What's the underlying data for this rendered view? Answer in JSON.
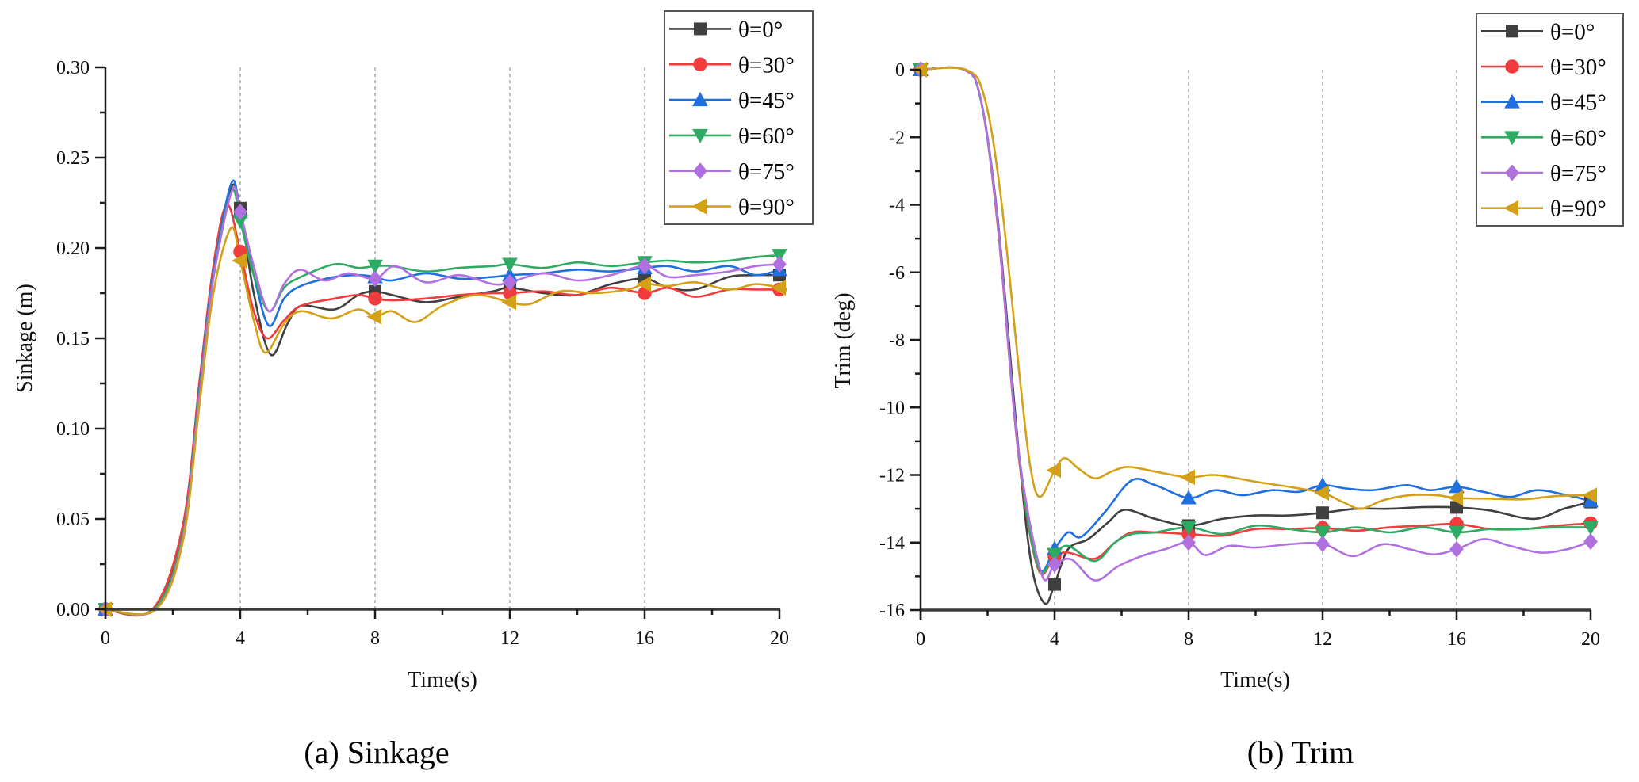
{
  "chart_data": [
    {
      "type": "line",
      "id": "sinkage",
      "caption": "(a) Sinkage",
      "title": "",
      "xlabel": "Time(s)",
      "ylabel": "Sinkage (m)",
      "xlim": [
        0,
        20
      ],
      "ylim": [
        0,
        0.3
      ],
      "xticks": [
        0,
        4,
        8,
        12,
        16,
        20
      ],
      "xtick_labels": [
        "0",
        "4",
        "8",
        "12",
        "16",
        "20"
      ],
      "yticks": [
        0,
        0.05,
        0.1,
        0.15,
        0.2,
        0.25,
        0.3
      ],
      "ytick_labels": [
        "0.00",
        "0.05",
        "0.10",
        "0.15",
        "0.20",
        "0.25",
        "0.30"
      ],
      "grid": "vertical dashed at x ticks",
      "legend_position": "top-right",
      "marker_x": [
        0,
        4,
        8,
        12,
        16,
        20
      ],
      "series": [
        {
          "name": "θ=0°",
          "color": "#404040",
          "marker": "square",
          "x": [
            0,
            1.4,
            2.3,
            2.8,
            3.2,
            3.72,
            4.0,
            4.4,
            4.9,
            5.4,
            5.8,
            6.8,
            7.5,
            8.0,
            8.5,
            9.5,
            10.5,
            11.5,
            12.0,
            13.0,
            14.0,
            15.0,
            16.0,
            16.7,
            17.5,
            18.5,
            19.3,
            20.0
          ],
          "y": [
            0,
            0,
            0.045,
            0.125,
            0.185,
            0.233,
            0.222,
            0.175,
            0.141,
            0.158,
            0.168,
            0.166,
            0.174,
            0.176,
            0.174,
            0.17,
            0.173,
            0.176,
            0.178,
            0.175,
            0.174,
            0.18,
            0.183,
            0.178,
            0.177,
            0.184,
            0.185,
            0.185
          ]
        },
        {
          "name": "θ=30°",
          "color": "#f03c3c",
          "marker": "circle",
          "x": [
            0,
            1.4,
            2.3,
            2.8,
            3.2,
            3.6,
            4.0,
            4.4,
            4.8,
            5.3,
            5.8,
            6.8,
            7.5,
            8.0,
            8.5,
            9.5,
            10.5,
            11.5,
            12.0,
            13.0,
            14.0,
            15.0,
            16.0,
            16.7,
            17.5,
            18.5,
            19.3,
            20.0
          ],
          "y": [
            0,
            0,
            0.047,
            0.128,
            0.19,
            0.224,
            0.198,
            0.165,
            0.15,
            0.16,
            0.168,
            0.172,
            0.174,
            0.172,
            0.171,
            0.172,
            0.174,
            0.175,
            0.175,
            0.176,
            0.174,
            0.178,
            0.175,
            0.178,
            0.173,
            0.177,
            0.177,
            0.177
          ]
        },
        {
          "name": "θ=45°",
          "color": "#1f6fe0",
          "marker": "triangle-up",
          "x": [
            0,
            1.45,
            2.3,
            2.8,
            3.2,
            3.74,
            4.0,
            4.4,
            4.85,
            5.3,
            5.8,
            6.8,
            7.5,
            8.0,
            8.5,
            9.5,
            10.5,
            11.5,
            12.0,
            13.0,
            14.0,
            15.0,
            16.0,
            16.7,
            17.5,
            18.5,
            19.3,
            20.0
          ],
          "y": [
            0,
            0,
            0.042,
            0.124,
            0.186,
            0.236,
            0.22,
            0.185,
            0.157,
            0.172,
            0.179,
            0.184,
            0.185,
            0.184,
            0.182,
            0.186,
            0.183,
            0.184,
            0.185,
            0.186,
            0.188,
            0.187,
            0.189,
            0.19,
            0.187,
            0.19,
            0.185,
            0.188
          ]
        },
        {
          "name": "θ=60°",
          "color": "#2eaa62",
          "marker": "triangle-down",
          "x": [
            0,
            1.45,
            2.3,
            2.8,
            3.2,
            3.74,
            4.0,
            4.4,
            4.85,
            5.3,
            5.8,
            6.8,
            7.5,
            8.0,
            8.5,
            9.5,
            10.5,
            11.5,
            12.0,
            13.0,
            14.0,
            15.0,
            16.0,
            16.7,
            17.5,
            18.5,
            19.3,
            20.0
          ],
          "y": [
            0,
            0,
            0.042,
            0.122,
            0.184,
            0.231,
            0.215,
            0.185,
            0.165,
            0.178,
            0.184,
            0.191,
            0.189,
            0.19,
            0.19,
            0.187,
            0.189,
            0.19,
            0.191,
            0.189,
            0.192,
            0.19,
            0.192,
            0.193,
            0.192,
            0.193,
            0.195,
            0.196
          ]
        },
        {
          "name": "θ=75°",
          "color": "#b070e0",
          "marker": "diamond",
          "x": [
            0,
            1.5,
            2.3,
            2.8,
            3.2,
            3.76,
            4.0,
            4.4,
            4.85,
            5.3,
            5.77,
            6.5,
            7.2,
            8.0,
            8.6,
            9.5,
            10.5,
            11.5,
            12.0,
            13.0,
            14.0,
            15.0,
            16.0,
            16.7,
            17.5,
            18.5,
            19.3,
            20.0
          ],
          "y": [
            0,
            0,
            0.04,
            0.12,
            0.183,
            0.232,
            0.22,
            0.19,
            0.165,
            0.18,
            0.188,
            0.182,
            0.186,
            0.183,
            0.19,
            0.181,
            0.185,
            0.18,
            0.181,
            0.186,
            0.182,
            0.185,
            0.19,
            0.184,
            0.185,
            0.187,
            0.19,
            0.191
          ]
        },
        {
          "name": "θ=90°",
          "color": "#d4a017",
          "marker": "triangle-left",
          "x": [
            0,
            1.5,
            2.3,
            2.8,
            3.2,
            3.72,
            4.0,
            4.4,
            4.75,
            5.3,
            5.8,
            6.7,
            7.5,
            8.0,
            8.5,
            9.2,
            10.0,
            11.0,
            12.0,
            12.6,
            13.5,
            14.5,
            15.5,
            16.0,
            16.7,
            17.5,
            18.5,
            19.3,
            20.0
          ],
          "y": [
            0,
            0,
            0.038,
            0.115,
            0.175,
            0.211,
            0.193,
            0.16,
            0.142,
            0.158,
            0.165,
            0.161,
            0.166,
            0.162,
            0.165,
            0.159,
            0.168,
            0.174,
            0.17,
            0.169,
            0.176,
            0.175,
            0.177,
            0.18,
            0.179,
            0.181,
            0.177,
            0.18,
            0.178
          ]
        }
      ]
    },
    {
      "type": "line",
      "id": "trim",
      "caption": "(b) Trim",
      "title": "",
      "xlabel": "Time(s)",
      "ylabel": "Trim (deg)",
      "xlim": [
        0,
        20
      ],
      "ylim": [
        -16,
        0
      ],
      "xticks": [
        0,
        4,
        8,
        12,
        16,
        20
      ],
      "xtick_labels": [
        "0",
        "4",
        "8",
        "12",
        "16",
        "20"
      ],
      "yticks": [
        0,
        -2,
        -4,
        -6,
        -8,
        -10,
        -12,
        -14,
        -16
      ],
      "ytick_labels": [
        "0",
        "-2",
        "-4",
        "-6",
        "-8",
        "-10",
        "-12",
        "-14",
        "-16"
      ],
      "grid": "vertical dashed at x ticks",
      "legend_position": "top-right",
      "marker_x": [
        0,
        4,
        8,
        12,
        16,
        20
      ],
      "series": [
        {
          "name": "θ=0°",
          "color": "#404040",
          "marker": "square",
          "x": [
            0,
            1.3,
            1.8,
            2.3,
            2.9,
            3.3,
            3.7,
            4.0,
            4.4,
            5.0,
            5.6,
            6.1,
            7.0,
            8.0,
            9.0,
            10.0,
            11.0,
            12.0,
            13.0,
            14.0,
            15.0,
            16.0,
            17.0,
            18.3,
            19.2,
            20.0
          ],
          "y": [
            0,
            0,
            -0.9,
            -4.4,
            -11.0,
            -14.6,
            -15.8,
            -15.24,
            -14.2,
            -13.9,
            -13.4,
            -13.03,
            -13.3,
            -13.5,
            -13.3,
            -13.2,
            -13.2,
            -13.12,
            -13.0,
            -13.0,
            -12.95,
            -12.96,
            -13.05,
            -13.3,
            -13.0,
            -12.8
          ]
        },
        {
          "name": "θ=30°",
          "color": "#f03c3c",
          "marker": "circle",
          "x": [
            0,
            1.3,
            1.8,
            2.3,
            2.9,
            3.5,
            4.0,
            4.4,
            5.2,
            5.8,
            6.3,
            7.0,
            8.0,
            9.0,
            10.0,
            11.0,
            12.0,
            13.0,
            14.0,
            15.0,
            16.0,
            17.0,
            18.0,
            19.0,
            20.0
          ],
          "y": [
            0,
            0,
            -0.9,
            -4.6,
            -11.2,
            -14.76,
            -14.4,
            -14.3,
            -14.48,
            -14.0,
            -13.7,
            -13.7,
            -13.75,
            -13.8,
            -13.6,
            -13.6,
            -13.57,
            -13.65,
            -13.55,
            -13.5,
            -13.45,
            -13.6,
            -13.6,
            -13.5,
            -13.43
          ]
        },
        {
          "name": "θ=45°",
          "color": "#1f6fe0",
          "marker": "triangle-up",
          "x": [
            0,
            1.3,
            1.8,
            2.3,
            2.9,
            3.5,
            4.0,
            4.4,
            4.8,
            5.5,
            6.3,
            7.0,
            8.0,
            8.8,
            9.6,
            10.5,
            11.3,
            12.0,
            12.7,
            13.5,
            14.5,
            15.2,
            16.0,
            16.8,
            17.6,
            18.4,
            19.3,
            20.0
          ],
          "y": [
            0,
            0,
            -0.9,
            -4.5,
            -11.1,
            -14.7,
            -14.18,
            -13.7,
            -13.83,
            -13.1,
            -12.16,
            -12.3,
            -12.68,
            -12.45,
            -12.6,
            -12.45,
            -12.5,
            -12.3,
            -12.4,
            -12.45,
            -12.3,
            -12.45,
            -12.35,
            -12.5,
            -12.65,
            -12.45,
            -12.6,
            -12.77
          ]
        },
        {
          "name": "θ=60°",
          "color": "#2eaa62",
          "marker": "triangle-down",
          "x": [
            0,
            1.3,
            1.8,
            2.3,
            2.9,
            3.5,
            4.0,
            4.4,
            5.2,
            5.8,
            6.3,
            7.0,
            8.0,
            9.0,
            10.0,
            11.0,
            12.0,
            13.0,
            14.0,
            15.0,
            16.0,
            17.0,
            18.0,
            19.0,
            20.0
          ],
          "y": [
            0,
            0,
            -0.9,
            -4.5,
            -11.1,
            -14.7,
            -14.35,
            -14.1,
            -14.55,
            -14.0,
            -13.75,
            -13.7,
            -13.55,
            -13.75,
            -13.5,
            -13.6,
            -13.7,
            -13.55,
            -13.7,
            -13.55,
            -13.7,
            -13.6,
            -13.6,
            -13.55,
            -13.55
          ]
        },
        {
          "name": "θ=75°",
          "color": "#b070e0",
          "marker": "diamond",
          "x": [
            0,
            1.3,
            1.8,
            2.3,
            2.9,
            3.6,
            4.0,
            4.5,
            5.2,
            5.9,
            6.6,
            7.3,
            8.0,
            8.5,
            9.2,
            10.0,
            11.0,
            12.0,
            12.9,
            13.8,
            14.6,
            15.3,
            16.0,
            16.8,
            17.6,
            18.5,
            19.3,
            20.0
          ],
          "y": [
            0,
            0,
            -0.9,
            -4.5,
            -11.1,
            -14.9,
            -14.65,
            -14.5,
            -15.12,
            -14.7,
            -14.4,
            -14.2,
            -14.0,
            -14.37,
            -14.1,
            -14.15,
            -14.05,
            -14.04,
            -14.4,
            -14.05,
            -14.2,
            -14.35,
            -14.2,
            -13.9,
            -14.1,
            -14.3,
            -14.2,
            -13.97
          ]
        },
        {
          "name": "θ=90°",
          "color": "#d4a017",
          "marker": "triangle-left",
          "x": [
            0,
            1.35,
            1.9,
            2.4,
            3.0,
            3.3,
            3.57,
            4.0,
            4.3,
            4.7,
            5.2,
            5.7,
            6.2,
            7.0,
            8.0,
            8.8,
            10.0,
            11.0,
            12.0,
            12.6,
            13.15,
            13.8,
            14.6,
            15.4,
            16.0,
            17.0,
            18.0,
            19.0,
            20.0
          ],
          "y": [
            0,
            0,
            -0.8,
            -3.8,
            -9.5,
            -11.9,
            -12.65,
            -11.86,
            -11.5,
            -11.8,
            -12.1,
            -11.9,
            -11.76,
            -11.9,
            -12.07,
            -12.0,
            -12.2,
            -12.35,
            -12.53,
            -12.8,
            -13.0,
            -12.75,
            -12.6,
            -12.6,
            -12.68,
            -12.7,
            -12.72,
            -12.62,
            -12.6
          ]
        }
      ]
    }
  ]
}
